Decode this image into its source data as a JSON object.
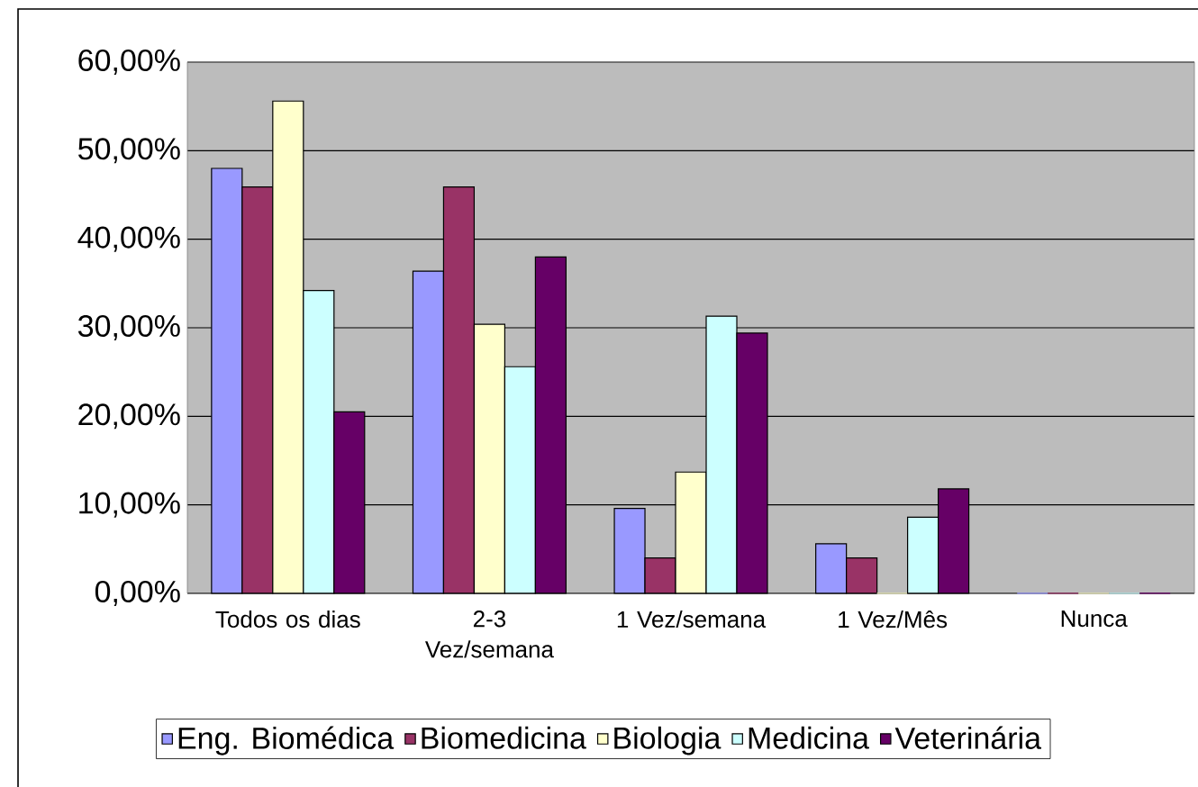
{
  "chart_data": {
    "type": "bar",
    "categories": [
      "Todos os dias",
      "2-3 Vez/semana",
      "1 Vez/semana",
      "1 Vez/Mês",
      "Nunca"
    ],
    "series": [
      {
        "name": "Eng. Biomédica",
        "color": "#9999ff",
        "values": [
          48.0,
          36.4,
          9.6,
          5.6,
          0
        ]
      },
      {
        "name": "Biomedicina",
        "color": "#993366",
        "values": [
          45.9,
          45.9,
          4.0,
          4.0,
          0
        ]
      },
      {
        "name": "Biologia",
        "color": "#ffffcc",
        "values": [
          55.6,
          30.4,
          13.7,
          0,
          0
        ]
      },
      {
        "name": "Medicina",
        "color": "#ccffff",
        "values": [
          34.2,
          25.6,
          31.3,
          8.6,
          0
        ]
      },
      {
        "name": "Veterinária",
        "color": "#660066",
        "values": [
          20.5,
          38.0,
          29.4,
          11.8,
          0
        ]
      }
    ],
    "ylim": [
      0,
      60
    ],
    "yticks": [
      {
        "value": 0,
        "label": "0,00%"
      },
      {
        "value": 10,
        "label": "10,00%"
      },
      {
        "value": 20,
        "label": "20,00%"
      },
      {
        "value": 30,
        "label": "30,00%"
      },
      {
        "value": 40,
        "label": "40,00%"
      },
      {
        "value": 50,
        "label": "50,00%"
      },
      {
        "value": 60,
        "label": "60,00%"
      }
    ],
    "grid": "y",
    "legend": "bottom"
  }
}
